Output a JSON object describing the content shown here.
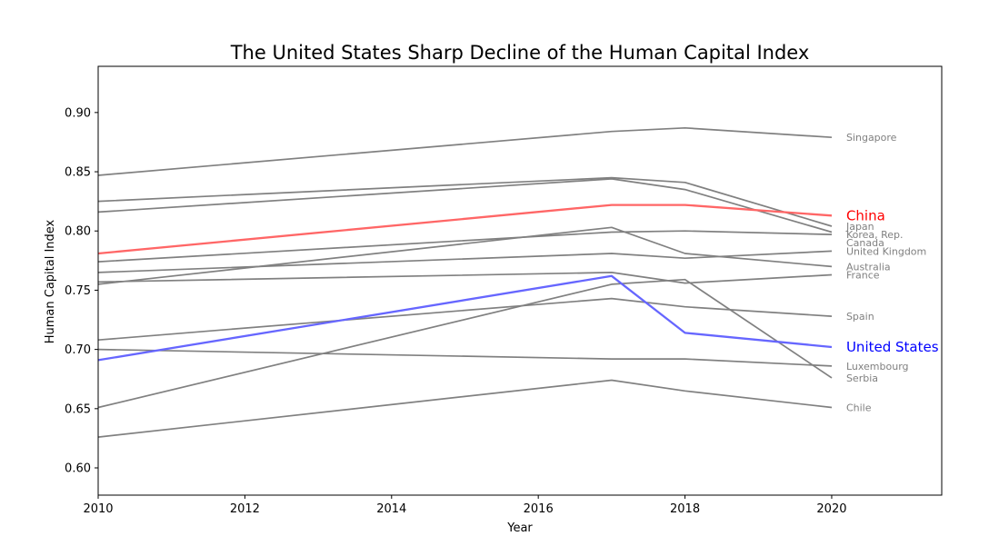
{
  "chart_data": {
    "type": "line",
    "title": "The United States Sharp Decline of the Human Capital Index",
    "xlabel": "Year",
    "ylabel": "Human Capital Index",
    "xlim": [
      2010,
      2021.5
    ],
    "ylim": [
      0.577,
      0.939
    ],
    "xticks": [
      "2010",
      "2012",
      "2014",
      "2016",
      "2018",
      "2020"
    ],
    "yticks": [
      "0.60",
      "0.65",
      "0.70",
      "0.75",
      "0.80",
      "0.85",
      "0.90"
    ],
    "grid": false,
    "legend": "none",
    "x": [
      2010,
      2017,
      2018,
      2020
    ],
    "series": [
      {
        "name": "Singapore",
        "values": [
          0.847,
          0.884,
          0.887,
          0.879
        ],
        "color": "#808080",
        "highlight": false
      },
      {
        "name": "Japan",
        "values": [
          0.825,
          0.845,
          0.841,
          0.804
        ],
        "color": "#808080",
        "highlight": false
      },
      {
        "name": "Korea, Rep.",
        "values": [
          0.816,
          0.844,
          0.835,
          0.799
        ],
        "color": "#808080",
        "highlight": false
      },
      {
        "name": "China",
        "values": [
          0.781,
          0.822,
          0.822,
          0.813
        ],
        "color": "#ff6666",
        "label_color": "#ff0000",
        "highlight": true
      },
      {
        "name": "Canada",
        "values": [
          0.774,
          0.799,
          0.8,
          0.797
        ],
        "color": "#808080",
        "highlight": false
      },
      {
        "name": "United Kingdom",
        "values": [
          0.765,
          0.781,
          0.777,
          0.783
        ],
        "color": "#808080",
        "highlight": false
      },
      {
        "name": "Australia",
        "values": [
          0.755,
          0.803,
          0.781,
          0.77
        ],
        "color": "#808080",
        "highlight": false
      },
      {
        "name": "France",
        "values": [
          0.757,
          0.765,
          0.756,
          0.763
        ],
        "color": "#808080",
        "highlight": false
      },
      {
        "name": "Spain",
        "values": [
          0.708,
          0.743,
          0.736,
          0.728
        ],
        "color": "#808080",
        "highlight": false
      },
      {
        "name": "United States",
        "values": [
          0.691,
          0.762,
          0.714,
          0.702
        ],
        "color": "#6666ff",
        "label_color": "#0000ff",
        "highlight": true
      },
      {
        "name": "Luxembourg",
        "values": [
          0.7,
          0.692,
          0.692,
          0.686
        ],
        "color": "#808080",
        "highlight": false
      },
      {
        "name": "Serbia",
        "values": [
          0.651,
          0.755,
          0.759,
          0.676
        ],
        "color": "#808080",
        "highlight": false
      },
      {
        "name": "Chile",
        "values": [
          0.626,
          0.674,
          0.665,
          0.651
        ],
        "color": "#808080",
        "highlight": false
      }
    ]
  }
}
